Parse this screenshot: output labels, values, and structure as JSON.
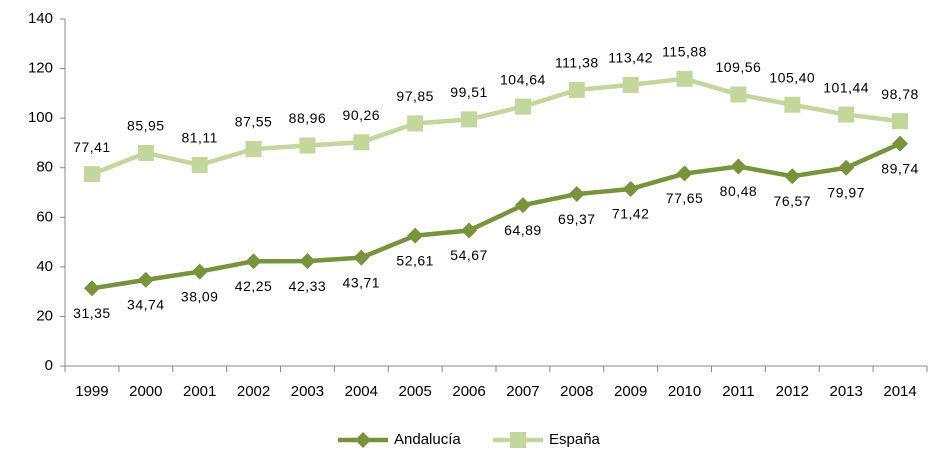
{
  "chart_data": {
    "type": "line",
    "categories": [
      "1999",
      "2000",
      "2001",
      "2002",
      "2003",
      "2004",
      "2005",
      "2006",
      "2007",
      "2008",
      "2009",
      "2010",
      "2011",
      "2012",
      "2013",
      "2014"
    ],
    "series": [
      {
        "name": "Andalucía",
        "color": "#77933c",
        "marker": "diamond",
        "label_position": "below",
        "values": [
          31.35,
          34.74,
          38.09,
          42.25,
          42.33,
          43.71,
          52.61,
          54.67,
          64.89,
          69.37,
          71.42,
          77.65,
          80.48,
          76.57,
          79.97,
          89.74
        ],
        "value_labels": [
          "31,35",
          "34,74",
          "38,09",
          "42,25",
          "42,33",
          "43,71",
          "52,61",
          "54,67",
          "64,89",
          "69,37",
          "71,42",
          "77,65",
          "80,48",
          "76,57",
          "79,97",
          "89,74"
        ]
      },
      {
        "name": "España",
        "color": "#c3d69b",
        "marker": "square",
        "label_position": "above",
        "values": [
          77.41,
          85.95,
          81.11,
          87.55,
          88.96,
          90.26,
          97.85,
          99.51,
          104.64,
          111.38,
          113.42,
          115.88,
          109.56,
          105.4,
          101.44,
          98.78
        ],
        "value_labels": [
          "77,41",
          "85,95",
          "81,11",
          "87,55",
          "88,96",
          "90,26",
          "97,85",
          "99,51",
          "104,64",
          "111,38",
          "113,42",
          "115,88",
          "109,56",
          "105,40",
          "101,44",
          "98,78"
        ]
      }
    ],
    "ylim": [
      0,
      140
    ],
    "yticks": [
      0,
      20,
      40,
      60,
      80,
      100,
      120,
      140
    ],
    "grid": false,
    "legend": "bottom"
  }
}
